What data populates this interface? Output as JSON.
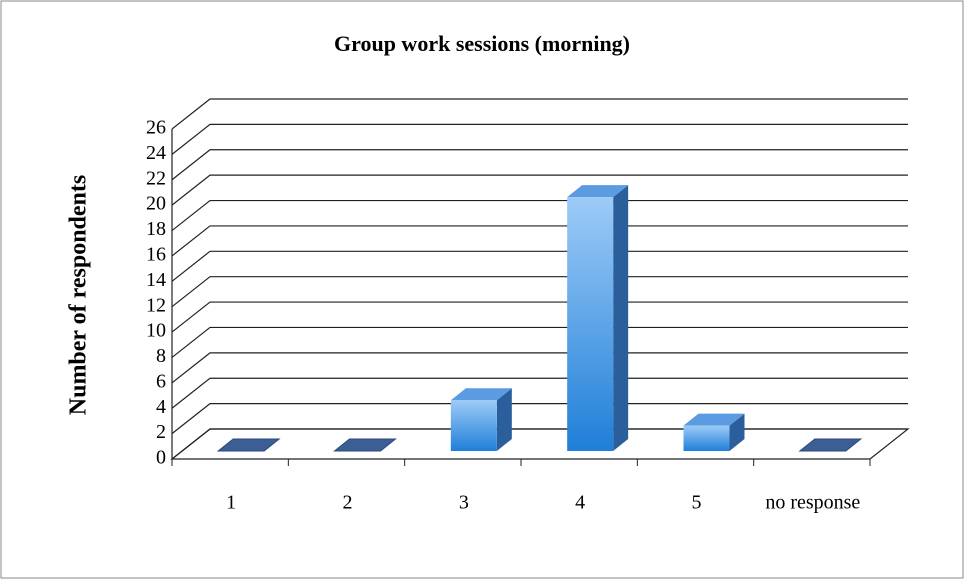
{
  "chart_data": {
    "type": "bar3d",
    "title": "Group work sessions (morning)",
    "y_label": "Number of respondents",
    "categories": [
      "1",
      "2",
      "3",
      "4",
      "5",
      "no response"
    ],
    "values": [
      0,
      0,
      4,
      20,
      2,
      0
    ],
    "color": "#2a86dc",
    "ylim": [
      0,
      26
    ],
    "yticks": [
      0,
      2,
      4,
      6,
      8,
      10,
      12,
      14,
      16,
      18,
      20,
      22,
      24,
      26
    ],
    "grid": true
  }
}
